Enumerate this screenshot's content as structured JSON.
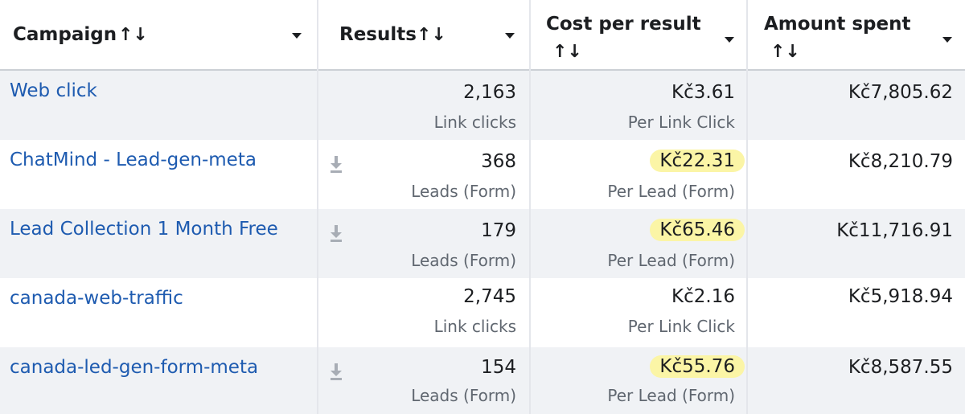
{
  "columns": {
    "campaign": "Campaign",
    "results": "Results",
    "cost_per_result": "Cost per result",
    "amount_spent": "Amount spent",
    "sort_icon": "↑↓"
  },
  "rows": [
    {
      "campaign": "Web click",
      "results": "2,163",
      "results_type": "Link clicks",
      "cost": "Kč3.61",
      "cost_type": "Per Link Click",
      "amount": "Kč7,805.62",
      "highlight": false,
      "download": false
    },
    {
      "campaign": "ChatMind - Lead-gen-meta",
      "results": "368",
      "results_type": "Leads (Form)",
      "cost": "Kč22.31",
      "cost_type": "Per Lead (Form)",
      "amount": "Kč8,210.79",
      "highlight": true,
      "download": true
    },
    {
      "campaign": "Lead Collection 1 Month Free",
      "results": "179",
      "results_type": "Leads (Form)",
      "cost": "Kč65.46",
      "cost_type": "Per Lead (Form)",
      "amount": "Kč11,716.91",
      "highlight": true,
      "download": true
    },
    {
      "campaign": "canada-web-traffic",
      "results": "2,745",
      "results_type": "Link clicks",
      "cost": "Kč2.16",
      "cost_type": "Per Link Click",
      "amount": "Kč5,918.94",
      "highlight": false,
      "download": false
    },
    {
      "campaign": "canada-led-gen-form-meta",
      "results": "154",
      "results_type": "Leads (Form)",
      "cost": "Kč55.76",
      "cost_type": "Per Lead (Form)",
      "amount": "Kč8,587.55",
      "highlight": true,
      "download": true
    }
  ],
  "colors": {
    "link": "#1e5bb0",
    "highlight": "#fbf5a6",
    "row_alt": "#f0f2f5"
  }
}
